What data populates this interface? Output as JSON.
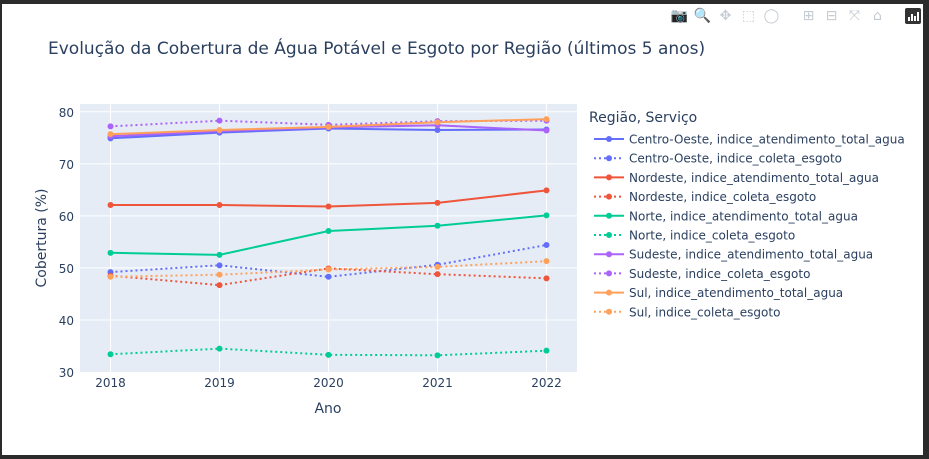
{
  "modebar": {
    "icons": [
      "camera-icon",
      "zoom-icon",
      "pan-icon",
      "box-select-icon",
      "lasso-select-icon",
      "zoom-in-icon",
      "zoom-out-icon",
      "autoscale-icon",
      "reset-axes-icon",
      "plotly-logo-icon"
    ],
    "glyphs": {
      "camera": "📷",
      "zoom": "🔍",
      "pan": "✥",
      "box": "⬚",
      "lasso": "◯",
      "zoomin": "⊞",
      "zoomout": "⊟",
      "autoscale": "⤧",
      "home": "⌂"
    }
  },
  "chart_data": {
    "type": "line",
    "title": "Evolução da Cobertura de Água Potável e Esgoto por Região (últimos 5 anos)",
    "xlabel": "Ano",
    "ylabel": "Cobertura (%)",
    "x": [
      2018,
      2019,
      2020,
      2021,
      2022
    ],
    "x_ticks": [
      "2018",
      "2019",
      "2020",
      "2021",
      "2022"
    ],
    "ylim": [
      30,
      81.5
    ],
    "y_ticks": [
      30,
      40,
      50,
      60,
      70,
      80
    ],
    "grid": true,
    "legend_title": "Região, Serviço",
    "legend_position": "right",
    "series": [
      {
        "name": "Centro-Oeste, indice_atendimento_total_agua",
        "color": "#636efa",
        "dash": "solid",
        "values": [
          74.9,
          76.0,
          76.8,
          76.5,
          76.6
        ]
      },
      {
        "name": "Centro-Oeste, indice_coleta_esgoto",
        "color": "#636efa",
        "dash": "dot",
        "values": [
          49.2,
          50.5,
          48.3,
          50.6,
          54.4
        ]
      },
      {
        "name": "Nordeste, indice_atendimento_total_agua",
        "color": "#ef553b",
        "dash": "solid",
        "values": [
          62.1,
          62.1,
          61.8,
          62.5,
          64.9
        ]
      },
      {
        "name": "Nordeste, indice_coleta_esgoto",
        "color": "#ef553b",
        "dash": "dot",
        "values": [
          48.5,
          46.7,
          49.9,
          48.8,
          48.0
        ]
      },
      {
        "name": "Norte, indice_atendimento_total_agua",
        "color": "#00cc96",
        "dash": "solid",
        "values": [
          52.9,
          52.5,
          57.1,
          58.1,
          60.1
        ]
      },
      {
        "name": "Norte, indice_coleta_esgoto",
        "color": "#00cc96",
        "dash": "dot",
        "values": [
          33.4,
          34.5,
          33.3,
          33.2,
          34.1
        ]
      },
      {
        "name": "Sudeste, indice_atendimento_total_agua",
        "color": "#ab63fa",
        "dash": "solid",
        "values": [
          75.3,
          76.3,
          77.0,
          77.4,
          76.4
        ]
      },
      {
        "name": "Sudeste, indice_coleta_esgoto",
        "color": "#ab63fa",
        "dash": "dot",
        "values": [
          77.2,
          78.3,
          77.5,
          78.2,
          78.3
        ]
      },
      {
        "name": "Sul, indice_atendimento_total_agua",
        "color": "#ffa15a",
        "dash": "solid",
        "values": [
          75.7,
          76.5,
          77.1,
          78.0,
          78.6
        ]
      },
      {
        "name": "Sul, indice_coleta_esgoto",
        "color": "#ffa15a",
        "dash": "dot",
        "values": [
          48.3,
          48.7,
          49.7,
          50.2,
          51.3
        ]
      }
    ]
  }
}
